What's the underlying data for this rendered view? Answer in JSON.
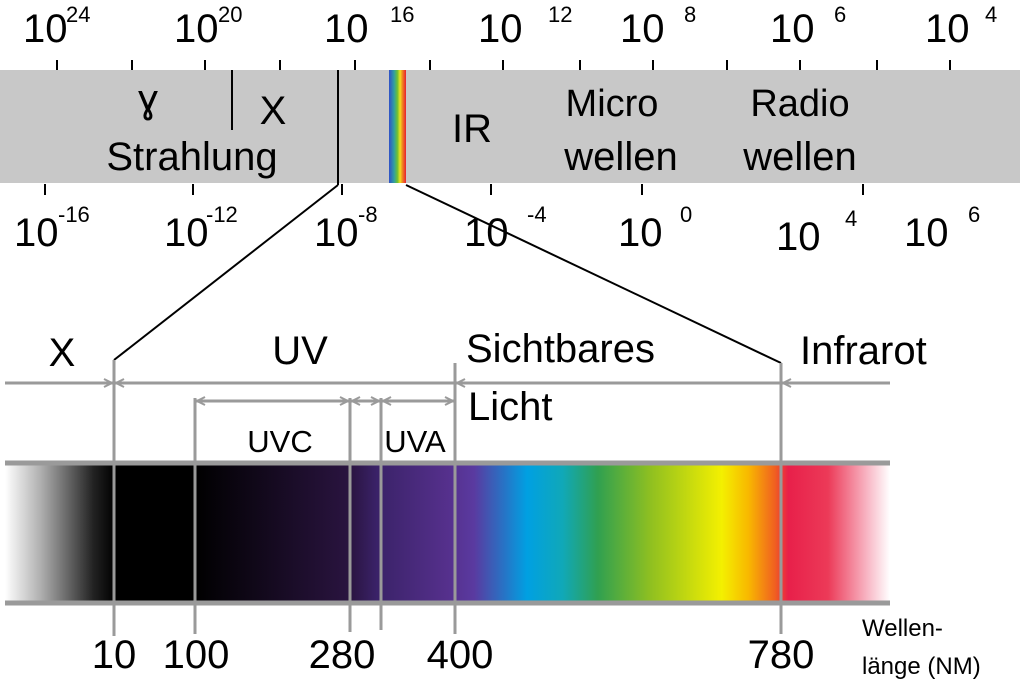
{
  "colors": {
    "band": "#c8c8c8",
    "guide": "#9a9a9a",
    "line": "#000000"
  },
  "top_scale": [
    {
      "base": "10",
      "exp": "24"
    },
    {
      "base": "10",
      "exp": "20"
    },
    {
      "base": "10",
      "exp": "16"
    },
    {
      "base": "10",
      "exp": "12"
    },
    {
      "base": "10",
      "exp": "8"
    },
    {
      "base": "10",
      "exp": "6"
    },
    {
      "base": "10",
      "exp": "4"
    }
  ],
  "bottom_scale": [
    {
      "base": "10",
      "exp": "-16"
    },
    {
      "base": "10",
      "exp": "-12"
    },
    {
      "base": "10",
      "exp": "-8"
    },
    {
      "base": "10",
      "exp": "-4"
    },
    {
      "base": "10",
      "exp": "0"
    },
    {
      "base": "10",
      "exp": "4"
    },
    {
      "base": "10",
      "exp": "6"
    }
  ],
  "band": {
    "gamma": "ɣ",
    "x": "X",
    "strahlung": "Strahlung",
    "ir": "IR",
    "micro": "Micro",
    "micro_wellen": "wellen",
    "radio": "Radio",
    "radio_wellen": "wellen"
  },
  "detail": {
    "x": "X",
    "uv": "UV",
    "sichtbares": "Sichtbares",
    "licht": "Licht",
    "infrarot": "Infrarot",
    "uvc": "UVC",
    "uva": "UVA",
    "wavelengths": [
      "10",
      "100",
      "280",
      "400",
      "780"
    ],
    "axis_label_1": "Wellen-",
    "axis_label_2": "länge (NM)"
  }
}
